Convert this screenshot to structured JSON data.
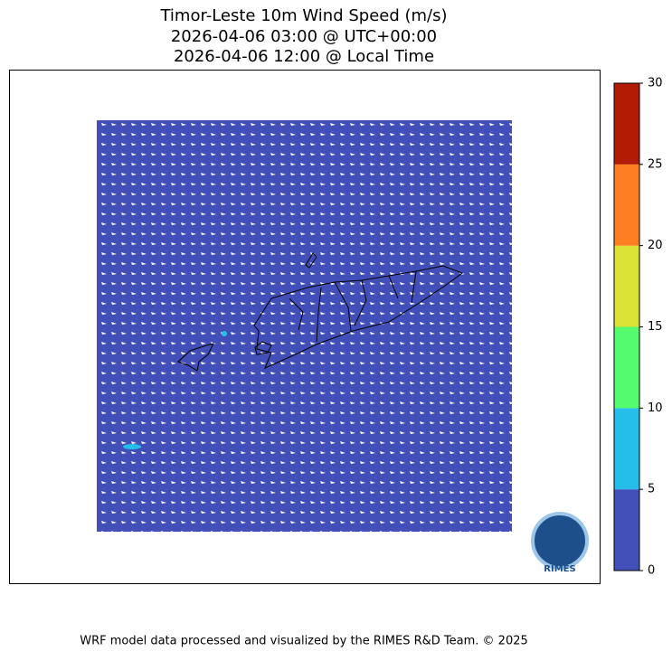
{
  "title": [
    "Timor-Leste 10m Wind Speed (m/s)",
    "2026-04-06 03:00 @ UTC+00:00",
    "2026-04-06 12:00 @ Local Time"
  ],
  "colorbar": {
    "lim": [
      0,
      30
    ],
    "ticks": [
      0,
      5,
      10,
      15,
      20,
      25,
      30
    ],
    "colors": [
      "#434fb9",
      "#25bde9",
      "#54fc6d",
      "#dae335",
      "#fd7f22",
      "#b31c04"
    ]
  },
  "logo_text": "RIMES",
  "footer": "WRF model data processed and visualized by the RIMES R&D Team. © 2025"
}
